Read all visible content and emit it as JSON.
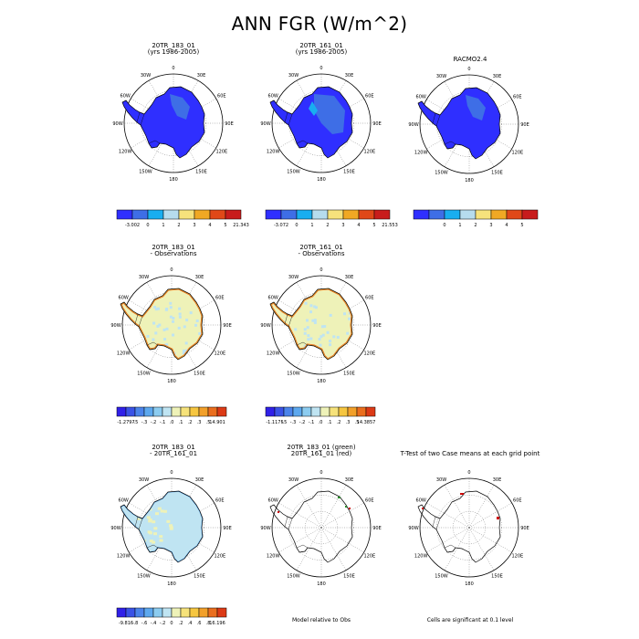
{
  "title": "ANN FGR (W/m^2)",
  "colors": {
    "ocean": "#ffffff",
    "outline": "#000000",
    "abs": [
      "#2f2fff",
      "#3e6ee6",
      "#18aef0",
      "#b6dcee",
      "#f6e27c",
      "#f0a824",
      "#e04818",
      "#c81c1c",
      "#9e1414"
    ],
    "diff": [
      "#3020e8",
      "#3a52e6",
      "#4b84ea",
      "#5da8ee",
      "#8cccf0",
      "#bfe4f2",
      "#eef2b8",
      "#f6e27a",
      "#f6c640",
      "#f2a02a",
      "#ea6e1e",
      "#dc3a16",
      "#c41616",
      "#8e0e0e"
    ]
  },
  "labels": {
    "longitudes": [
      "0",
      "30E",
      "60E",
      "90E",
      "120E",
      "150E",
      "180",
      "150W",
      "120W",
      "90W",
      "60W",
      "30W"
    ]
  },
  "panels": [
    {
      "title_line1": "20TR_183_01",
      "title_line2": "(yrs 1986-2005)",
      "style": "abs",
      "cbar_labels": [
        "-3.002",
        "0",
        "1",
        "2",
        "3",
        "4",
        "5",
        "21.343"
      ]
    },
    {
      "title_line1": "20TR_161_01",
      "title_line2": "(yrs 1986-2005)",
      "style": "abs2",
      "cbar_labels": [
        "-3.072",
        "0",
        "1",
        "2",
        "3",
        "4",
        "5",
        "21.553"
      ]
    },
    {
      "title_line1": "RACMO2.4",
      "title_line2": "",
      "style": "abs",
      "cbar_labels": [
        "",
        "0",
        "1",
        "2",
        "3",
        "4",
        "5",
        ""
      ]
    },
    {
      "title_line1": "20TR_183_01",
      "title_line2": "- Observations",
      "style": "diffobs",
      "cbar_labels": [
        "-1.2797",
        "-.5",
        "-.3",
        "-.2",
        "-.1",
        ".0",
        ".1",
        ".2",
        ".3",
        ".5",
        "14.901"
      ]
    },
    {
      "title_line1": "20TR_161_01",
      "title_line2": "- Observations",
      "style": "diffobs",
      "cbar_labels": [
        "-1.1175",
        "-.5",
        "-.3",
        "-.2",
        "-.1",
        ".0",
        ".1",
        ".2",
        ".3",
        ".5",
        "14.3857"
      ]
    },
    {
      "title_line1": "20TR_183_01",
      "title_line2": "- 20TR_161_01",
      "style": "diffmod",
      "cbar_labels": [
        "-9.816",
        "-.8",
        "-.6",
        "-.4",
        "-.2",
        "0",
        ".2",
        ".4",
        ".6",
        ".8",
        "16.196"
      ]
    },
    {
      "title_line1": "20TR_183_01 (green)",
      "title_line2": "20TR_161_01 (red)",
      "style": "outline"
    },
    {
      "title_line1": "T-Test of two Case means at each grid point",
      "title_line2": "",
      "style": "ttest"
    }
  ],
  "notes": {
    "model_relative": "Model relative to Obs",
    "significance": "Cells are significant at 0.1 level"
  }
}
